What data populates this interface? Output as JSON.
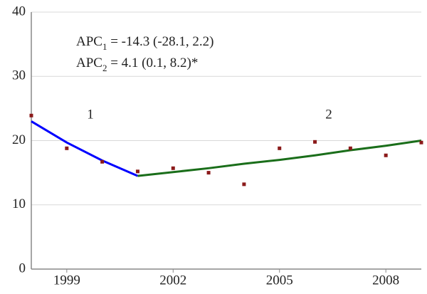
{
  "chart_data": {
    "type": "line",
    "x": [
      1998,
      1999,
      2000,
      2001,
      2002,
      2003,
      2004,
      2005,
      2006,
      2007,
      2008,
      2009
    ],
    "values": [
      23.9,
      18.8,
      16.7,
      15.2,
      15.7,
      15.0,
      13.2,
      18.8,
      19.8,
      18.8,
      17.7,
      19.7
    ],
    "color": "#8b1a1a",
    "series": [
      {
        "name": "1",
        "color": "#0000ff",
        "x": [
          1998,
          1999,
          2000,
          2001
        ],
        "values": [
          23.0,
          19.7,
          16.9,
          14.5
        ]
      },
      {
        "name": "2",
        "color": "#1a6e1a",
        "x": [
          2001,
          2002,
          2003,
          2004,
          2005,
          2006,
          2007,
          2008,
          2009
        ],
        "values": [
          14.5,
          15.1,
          15.7,
          16.4,
          17.0,
          17.7,
          18.5,
          19.2,
          20.0
        ]
      }
    ],
    "annotations": [
      {
        "prefix": "APC",
        "sub": "1",
        "text": " = -14.3 (-28.1, 2.2)"
      },
      {
        "prefix": "APC",
        "sub": "2",
        "text": " = 4.1 (0.1, 8.2)*"
      }
    ],
    "xlim": [
      1998,
      2009
    ],
    "xticks": [
      1999,
      2002,
      2005,
      2008
    ],
    "ylim": [
      0,
      40
    ],
    "yticks": [
      0,
      10,
      20,
      30,
      40
    ],
    "grid": true
  }
}
